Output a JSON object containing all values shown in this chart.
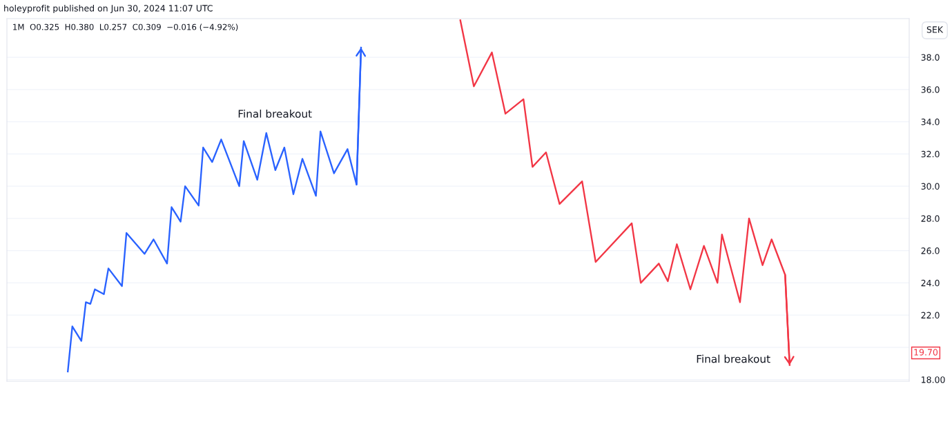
{
  "chart_data": {
    "type": "line",
    "title": "holeyprofit published on Jun 30, 2024 11:07 UTC",
    "subtitle": "1M  O0.325  H0.380  L0.257  C0.309  −0.016 (−4.92%)",
    "categories": [
      null,
      null,
      null,
      null,
      null,
      null,
      null,
      null,
      null,
      null,
      null,
      null,
      null,
      null,
      null,
      null,
      null,
      null,
      null,
      null,
      null,
      null,
      null,
      null,
      null,
      null,
      null,
      null,
      null,
      null,
      null,
      null,
      null,
      null,
      null,
      null,
      null,
      null,
      null,
      null,
      null,
      null,
      null,
      null,
      null,
      null,
      null,
      null,
      null,
      null,
      null,
      null,
      null,
      null,
      null,
      null,
      null,
      null,
      null,
      null,
      null,
      null,
      null,
      null,
      null,
      null,
      null,
      null,
      null,
      null,
      null,
      null,
      null,
      null,
      null,
      null,
      null,
      null,
      null,
      null,
      null,
      null,
      null,
      null,
      null,
      null,
      null,
      null,
      null,
      null,
      null,
      null,
      null,
      null,
      null,
      null,
      null,
      null,
      null,
      null,
      null,
      null,
      null,
      null,
      null,
      null,
      null,
      null,
      null,
      null,
      null,
      null,
      null,
      null,
      null,
      null,
      null,
      null,
      null,
      null,
      null,
      null,
      null,
      null,
      null,
      null,
      null,
      null,
      null,
      null,
      null,
      null,
      null,
      null,
      null,
      null,
      null,
      null,
      null,
      null,
      null,
      null,
      null,
      null,
      null,
      null,
      null,
      null,
      null,
      null,
      null,
      null,
      null,
      null,
      null,
      null,
      null,
      null,
      null,
      null,
      null,
      null,
      null,
      null,
      null,
      null,
      null,
      null,
      null,
      null,
      null,
      null,
      null,
      null,
      null,
      null,
      null,
      null,
      null,
      null,
      null,
      null,
      null,
      null,
      null,
      null,
      null,
      null,
      null,
      null,
      null,
      null,
      null,
      null,
      null,
      null,
      null,
      null,
      null,
      null
    ],
    "series": [
      {
        "color": "#2962ff",
        "values": [
          null,
          null,
          null,
          null,
          null,
          null,
          null,
          null,
          null,
          null,
          null,
          null,
          null,
          18.5,
          21.3,
          null,
          20.4,
          22.8,
          22.7,
          23.6,
          null,
          23.3,
          24.9,
          null,
          null,
          23.8,
          27.1,
          null,
          null,
          null,
          25.8,
          null,
          26.7,
          null,
          null,
          25.2,
          28.7,
          null,
          27.8,
          30.0,
          null,
          null,
          28.8,
          32.4,
          null,
          31.5,
          null,
          32.9,
          null,
          null,
          null,
          30.0,
          32.8,
          null,
          null,
          30.4,
          null,
          33.3,
          null,
          31.0,
          null,
          32.4,
          null,
          29.5,
          null,
          31.7,
          null,
          null,
          29.4,
          33.4,
          null,
          null,
          30.8,
          null,
          null,
          32.3,
          null,
          30.1,
          38.6,
          null,
          null,
          null,
          null,
          null,
          null,
          null,
          null,
          null,
          null,
          null,
          null,
          null,
          null,
          null,
          null,
          null,
          null,
          null,
          null,
          null,
          null,
          null,
          null,
          null,
          null,
          null,
          null,
          null,
          null,
          null,
          null,
          null,
          null,
          null,
          null,
          null,
          null,
          null,
          null,
          null,
          null,
          null,
          null,
          null,
          null,
          null,
          null,
          null,
          null,
          null,
          null,
          null,
          null,
          null,
          null,
          null,
          null,
          null,
          null,
          null,
          null,
          null,
          null,
          null,
          null,
          null,
          null,
          null,
          null,
          null,
          null,
          null,
          null,
          null,
          null,
          null,
          null,
          null,
          null,
          null,
          null,
          null,
          null,
          null,
          null,
          null,
          null,
          null,
          null,
          null,
          null,
          null,
          null,
          null,
          null,
          null,
          null,
          null,
          null,
          null,
          null,
          null,
          null,
          null,
          null,
          null,
          null,
          null,
          null,
          null,
          null,
          null,
          null,
          null,
          null,
          null,
          null,
          null,
          null,
          null
        ]
      },
      {
        "color": "#f23645",
        "values": [
          null,
          null,
          null,
          null,
          null,
          null,
          null,
          null,
          null,
          null,
          null,
          null,
          null,
          null,
          null,
          null,
          null,
          null,
          null,
          null,
          null,
          null,
          null,
          null,
          null,
          null,
          null,
          null,
          null,
          null,
          null,
          null,
          null,
          null,
          null,
          null,
          null,
          null,
          null,
          null,
          null,
          null,
          null,
          null,
          null,
          null,
          null,
          null,
          null,
          null,
          null,
          null,
          null,
          null,
          null,
          null,
          null,
          null,
          null,
          null,
          null,
          null,
          null,
          null,
          null,
          null,
          null,
          null,
          null,
          null,
          null,
          null,
          null,
          null,
          null,
          null,
          null,
          null,
          null,
          null,
          null,
          null,
          null,
          null,
          null,
          null,
          null,
          null,
          null,
          null,
          null,
          null,
          null,
          null,
          null,
          null,
          null,
          null,
          null,
          null,
          40.3,
          null,
          null,
          36.2,
          null,
          null,
          null,
          38.3,
          null,
          null,
          34.5,
          null,
          null,
          null,
          35.4,
          null,
          31.2,
          null,
          null,
          32.1,
          null,
          null,
          28.9,
          null,
          null,
          null,
          null,
          30.3,
          null,
          null,
          25.3,
          null,
          null,
          null,
          null,
          null,
          null,
          null,
          27.7,
          null,
          24.0,
          null,
          null,
          null,
          25.2,
          null,
          24.1,
          null,
          26.4,
          null,
          null,
          23.6,
          null,
          null,
          26.3,
          null,
          null,
          24.0,
          27.0,
          null,
          null,
          null,
          22.8,
          null,
          28.0,
          null,
          null,
          25.1,
          null,
          26.7,
          null,
          null,
          24.5,
          18.9,
          null,
          null,
          null,
          null,
          null,
          null,
          null,
          null,
          null,
          null,
          null,
          null,
          null,
          null,
          null,
          null,
          null,
          null,
          null,
          null,
          null,
          null,
          null,
          null,
          null,
          null
        ]
      }
    ],
    "annotations": [
      "Final breakout",
      "Final breakout",
      "SEK",
      "19.70"
    ],
    "ylim": [
      17.9,
      40.4
    ],
    "yticks": [
      {
        "value": 18,
        "label": "18.00"
      },
      {
        "value": 20,
        "label": null
      },
      {
        "value": 22,
        "label": "22.0"
      },
      {
        "value": 24,
        "label": "24.0"
      },
      {
        "value": 26,
        "label": "26.0"
      },
      {
        "value": 28,
        "label": "28.0"
      },
      {
        "value": 30,
        "label": "30.0"
      },
      {
        "value": 32,
        "label": "32.0"
      },
      {
        "value": 34,
        "label": "34.0"
      },
      {
        "value": 36,
        "label": "36.0"
      },
      {
        "value": 38,
        "label": "38.0"
      }
    ],
    "tick_labels": "y",
    "grid": "y",
    "marker": "none",
    "line_style": "solid"
  }
}
